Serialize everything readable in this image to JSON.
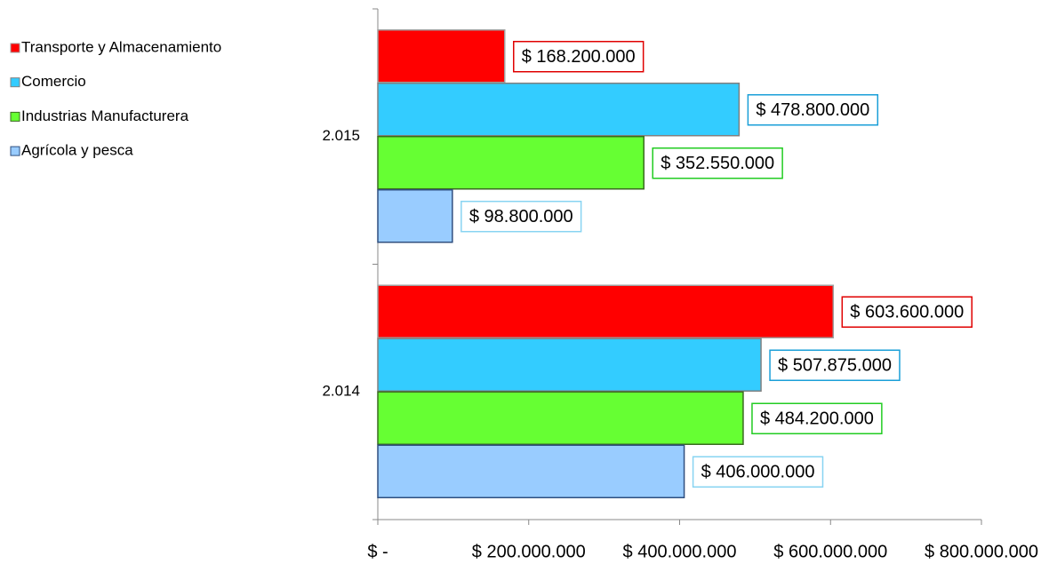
{
  "chart_data": {
    "type": "hbar",
    "categories": [
      "2.015",
      "2.014"
    ],
    "series": [
      {
        "name": "Transporte y Almacenamiento",
        "color": "#ff0000",
        "values": [
          168200000,
          603600000
        ],
        "value_labels": [
          "$ 168.200.000",
          "$ 603.600.000"
        ]
      },
      {
        "name": "Comercio",
        "color": "#33ccff",
        "values": [
          478800000,
          507875000
        ],
        "value_labels": [
          "$ 478.800.000",
          "$ 507.875.000"
        ]
      },
      {
        "name": "Industrias Manufacturera",
        "color": "#66ff33",
        "values": [
          352550000,
          484200000
        ],
        "value_labels": [
          "$ 352.550.000",
          "$ 484.200.000"
        ]
      },
      {
        "name": "Agrícola y pesca",
        "color": "#99ccff",
        "values": [
          98800000,
          406000000
        ],
        "value_labels": [
          "$ 98.800.000",
          "$ 406.000.000"
        ]
      }
    ],
    "xlim": [
      0,
      800000000
    ],
    "xticks": [
      {
        "value": 0,
        "label": "$ -"
      },
      {
        "value": 200000000,
        "label": "$ 200.000.000"
      },
      {
        "value": 400000000,
        "label": "$ 400.000.000"
      },
      {
        "value": 600000000,
        "label": "$ 600.000.000"
      },
      {
        "value": 800000000,
        "label": "$ 800.000.000"
      }
    ],
    "legend": "top-left"
  }
}
